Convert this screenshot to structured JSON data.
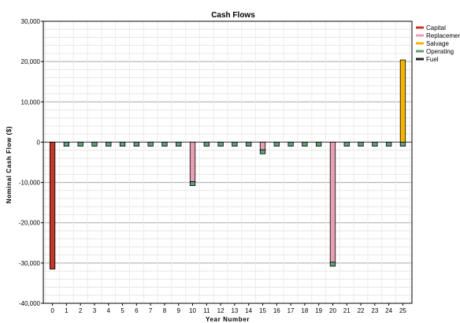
{
  "chart_data": {
    "type": "bar",
    "title": "Cash Flows",
    "xlabel": "Year Number",
    "ylabel": "Nominal Cash Flow ($)",
    "ylim": [
      -40000,
      30000
    ],
    "yticks": [
      30000,
      20000,
      10000,
      0,
      -10000,
      -20000,
      -30000,
      -40000
    ],
    "ytick_labels": [
      "30,000",
      "20,000",
      "10,000",
      "0",
      "-10,000",
      "-20,000",
      "-30,000",
      "-40,000"
    ],
    "categories": [
      "0",
      "1",
      "2",
      "3",
      "4",
      "5",
      "6",
      "7",
      "8",
      "9",
      "10",
      "11",
      "12",
      "13",
      "14",
      "15",
      "16",
      "17",
      "18",
      "19",
      "20",
      "21",
      "22",
      "23",
      "24",
      "25"
    ],
    "stacked": true,
    "grid": true,
    "legend_position": "top-right",
    "series": [
      {
        "name": "Capital",
        "color": "#c0392b",
        "values": [
          -31500,
          0,
          0,
          0,
          0,
          0,
          0,
          0,
          0,
          0,
          0,
          0,
          0,
          0,
          0,
          0,
          0,
          0,
          0,
          0,
          0,
          0,
          0,
          0,
          0,
          0
        ]
      },
      {
        "name": "Replacement",
        "legend_label": "Replacemen",
        "color": "#e6a0b4",
        "values": [
          0,
          0,
          0,
          0,
          0,
          0,
          0,
          0,
          0,
          0,
          -9800,
          0,
          0,
          0,
          0,
          -1900,
          0,
          0,
          0,
          0,
          -29800,
          0,
          0,
          0,
          0,
          0
        ]
      },
      {
        "name": "Salvage",
        "color": "#f5b400",
        "values": [
          0,
          0,
          0,
          0,
          0,
          0,
          0,
          0,
          0,
          0,
          0,
          0,
          0,
          0,
          0,
          0,
          0,
          0,
          0,
          0,
          0,
          0,
          0,
          0,
          0,
          20400
        ]
      },
      {
        "name": "Operating",
        "color": "#5fa07a",
        "values": [
          0,
          -1000,
          -1000,
          -1000,
          -1000,
          -1000,
          -1000,
          -1000,
          -1000,
          -1000,
          -1000,
          -1000,
          -1000,
          -1000,
          -1000,
          -1000,
          -1000,
          -1000,
          -1000,
          -1000,
          -1000,
          -1000,
          -1000,
          -1000,
          -1000,
          -1000
        ]
      },
      {
        "name": "Fuel",
        "color": "#222222",
        "values": [
          0,
          0,
          0,
          0,
          0,
          0,
          0,
          0,
          0,
          0,
          0,
          0,
          0,
          0,
          0,
          0,
          0,
          0,
          0,
          0,
          0,
          0,
          0,
          0,
          0,
          0
        ]
      }
    ]
  }
}
